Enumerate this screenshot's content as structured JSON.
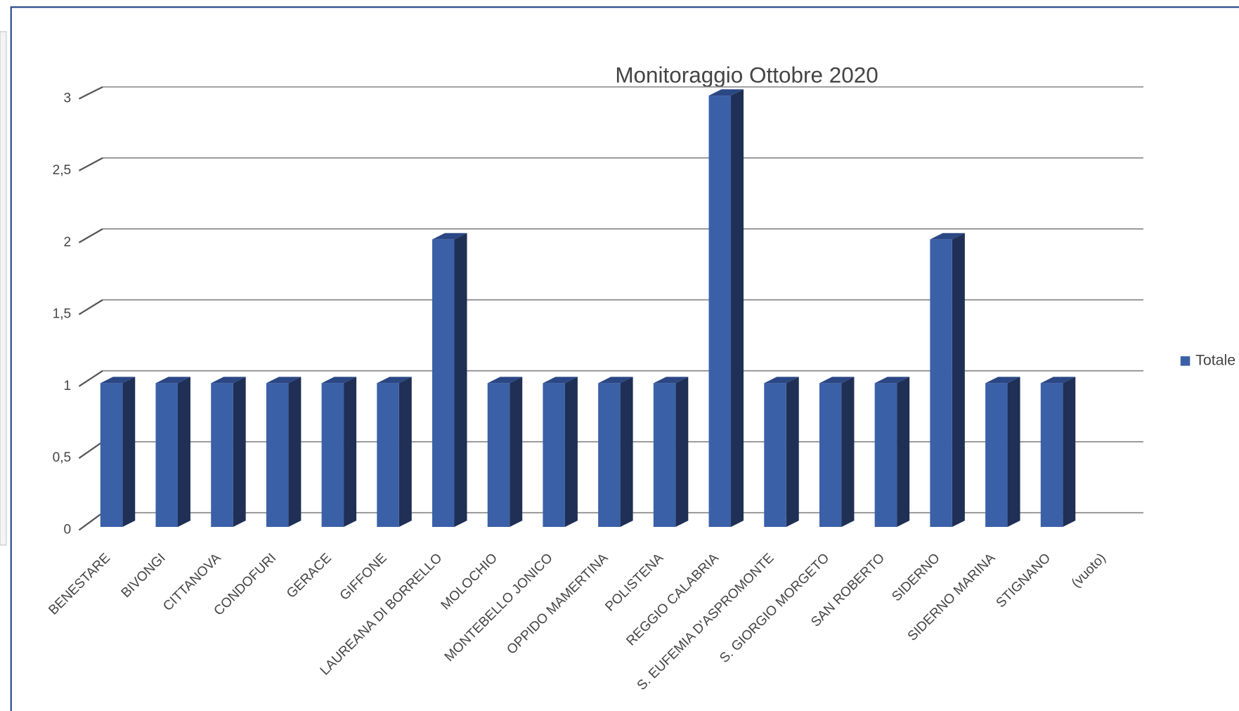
{
  "chart_data": {
    "type": "bar",
    "title": "Monitoraggio Ottobre 2020",
    "categories": [
      "BENESTARE",
      "BIVONGI",
      "CITTANOVA",
      "CONDOFURI",
      "GERACE",
      "GIFFONE",
      "LAUREANA DI BORRELLO",
      "MOLOCHIO",
      "MONTEBELLO JONICO",
      "OPPIDO MAMERTINA",
      "POLISTENA",
      "REGGIO CALABRIA",
      "S. EUFEMIA D'ASPROMONTE",
      "S. GIORGIO MORGETO",
      "SAN ROBERTO",
      "SIDERNO",
      "SIDERNO MARINA",
      "STIGNANO",
      "(vuoto)"
    ],
    "series": [
      {
        "name": "Totale",
        "color": "#3a60a8",
        "values": [
          1,
          1,
          1,
          1,
          1,
          1,
          2,
          1,
          1,
          1,
          1,
          3,
          1,
          1,
          1,
          2,
          1,
          1,
          null
        ]
      }
    ],
    "ylim": [
      0,
      3
    ],
    "yticks": [
      0,
      {
        "value": 0.5,
        "label": "0,5"
      },
      1,
      {
        "value": 1.5,
        "label": "1,5"
      },
      2,
      {
        "value": 2.5,
        "label": "2,5"
      },
      3
    ],
    "grid": true,
    "legend": "right"
  }
}
